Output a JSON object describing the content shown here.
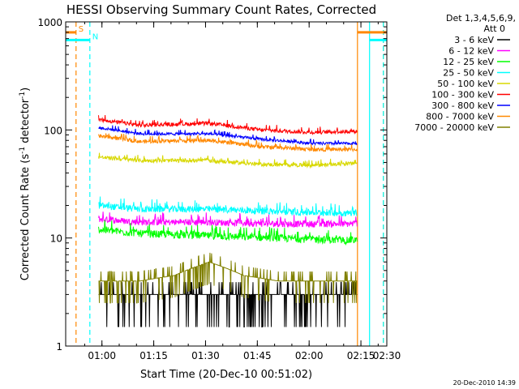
{
  "chart_data": {
    "type": "line",
    "title": "HESSI Observing Summary Count Rates, Corrected",
    "xlabel": "Start Time (20-Dec-10 00:51:02)",
    "ylabel_main": "Corrected Count Rate (s",
    "ylabel_sup1": "-1",
    "ylabel_mid": " detector",
    "ylabel_sup2": "-1",
    "ylabel_end": ")",
    "yscale": "log",
    "ylim": [
      1,
      1000
    ],
    "xlim_minutes": [
      -1.5,
      91.5
    ],
    "x_origin": "00:51:02",
    "xticks": [
      {
        "min": 9,
        "label": "01:00"
      },
      {
        "min": 24,
        "label": "01:15"
      },
      {
        "min": 39,
        "label": "01:30"
      },
      {
        "min": 54,
        "label": "01:45"
      },
      {
        "min": 69,
        "label": "02:00"
      },
      {
        "min": 84,
        "label": "02:15"
      },
      {
        "min": 99,
        "label": "02:30"
      }
    ],
    "yticks": [
      {
        "value": 1,
        "label": "1"
      },
      {
        "value": 10,
        "label": "10"
      },
      {
        "value": 100,
        "label": "100"
      },
      {
        "value": 1000,
        "label": "1000"
      }
    ],
    "legend": {
      "placement": "right",
      "header1": "Det 1,3,4,5,6,9,",
      "header2": "Att 0",
      "entries": [
        {
          "label": "3 - 6 keV",
          "color": "#000000"
        },
        {
          "label": "6 - 12 keV",
          "color": "#ff00ff"
        },
        {
          "label": "12 - 25 keV",
          "color": "#00ff00"
        },
        {
          "label": "25 - 50 keV",
          "color": "#00ffff"
        },
        {
          "label": "50 - 100 keV",
          "color": "#d8d800"
        },
        {
          "label": "100 - 300 keV",
          "color": "#ff0000"
        },
        {
          "label": "300 - 800 keV",
          "color": "#0000ff"
        },
        {
          "label": "800 - 7000 keV",
          "color": "#ff8800"
        },
        {
          "label": "7000 - 20000 keV",
          "color": "#808000"
        }
      ]
    },
    "series": [
      {
        "color": "#000000",
        "x": [
          8,
          20,
          40,
          60,
          80,
          88
        ],
        "y": [
          3,
          3,
          3,
          3,
          3,
          3
        ],
        "noise": 0.2,
        "pattern": "steps"
      },
      {
        "color": "#ff00ff",
        "x": [
          8,
          20,
          40,
          60,
          80,
          88
        ],
        "y": [
          15,
          14,
          14,
          13.5,
          13.5,
          14
        ],
        "noise": 0.07
      },
      {
        "color": "#00ff00",
        "x": [
          8,
          20,
          40,
          60,
          80,
          88
        ],
        "y": [
          12,
          11,
          10.5,
          10,
          9.5,
          10
        ],
        "noise": 0.08
      },
      {
        "color": "#00ffff",
        "x": [
          8,
          20,
          40,
          60,
          80,
          88
        ],
        "y": [
          20,
          18.5,
          18.5,
          17.5,
          17,
          18
        ],
        "noise": 0.07
      },
      {
        "color": "#d8d800",
        "x": [
          8,
          20,
          40,
          55,
          70,
          88
        ],
        "y": [
          56,
          52,
          52,
          48,
          47,
          50
        ],
        "noise": 0.04
      },
      {
        "color": "#ff0000",
        "x": [
          8,
          20,
          40,
          55,
          70,
          88
        ],
        "y": [
          125,
          110,
          115,
          100,
          95,
          98
        ],
        "noise": 0.04
      },
      {
        "color": "#0000ff",
        "x": [
          8,
          20,
          40,
          55,
          70,
          88
        ],
        "y": [
          105,
          92,
          92,
          82,
          75,
          75
        ],
        "noise": 0.03
      },
      {
        "color": "#ff8800",
        "x": [
          8,
          20,
          40,
          55,
          70,
          88
        ],
        "y": [
          88,
          78,
          80,
          70,
          66,
          66
        ],
        "noise": 0.04
      },
      {
        "color": "#808000",
        "x": [
          8,
          20,
          30,
          40,
          50,
          60,
          80,
          88
        ],
        "y": [
          4,
          4,
          4.5,
          6,
          4.5,
          4,
          4,
          4
        ],
        "noise": 0.15,
        "pattern": "steps"
      }
    ],
    "flags": [
      {
        "label": "S",
        "color": "#ff8800",
        "x_start": -1.5,
        "x_end": 1.5,
        "y": 800
      },
      {
        "label": "N",
        "color": "#00ffff",
        "x_start": -1.5,
        "x_end": 5.5,
        "y": 680
      },
      {
        "label": "",
        "color": "#ff8800",
        "x_start": 83,
        "x_end": 91.5,
        "y": 800
      },
      {
        "label": "",
        "color": "#00ffff",
        "x_start": 86.5,
        "x_end": 91.5,
        "y": 680
      }
    ],
    "vlines": [
      {
        "min": 1.5,
        "color": "#ff8800",
        "style": "dashed"
      },
      {
        "min": 5.5,
        "color": "#00ffff",
        "style": "dashed"
      },
      {
        "min": 83,
        "color": "#ff8800",
        "style": "solid"
      },
      {
        "min": 86.5,
        "color": "#00ffff",
        "style": "solid"
      },
      {
        "min": 90.5,
        "color": "#ff8800",
        "style": "dashed"
      },
      {
        "min": 90.5,
        "color": "#00ffff",
        "style": "dashed"
      }
    ],
    "gap_before": 8,
    "gap_after": 83
  },
  "footer_date": "20-Dec-2010 14:39"
}
